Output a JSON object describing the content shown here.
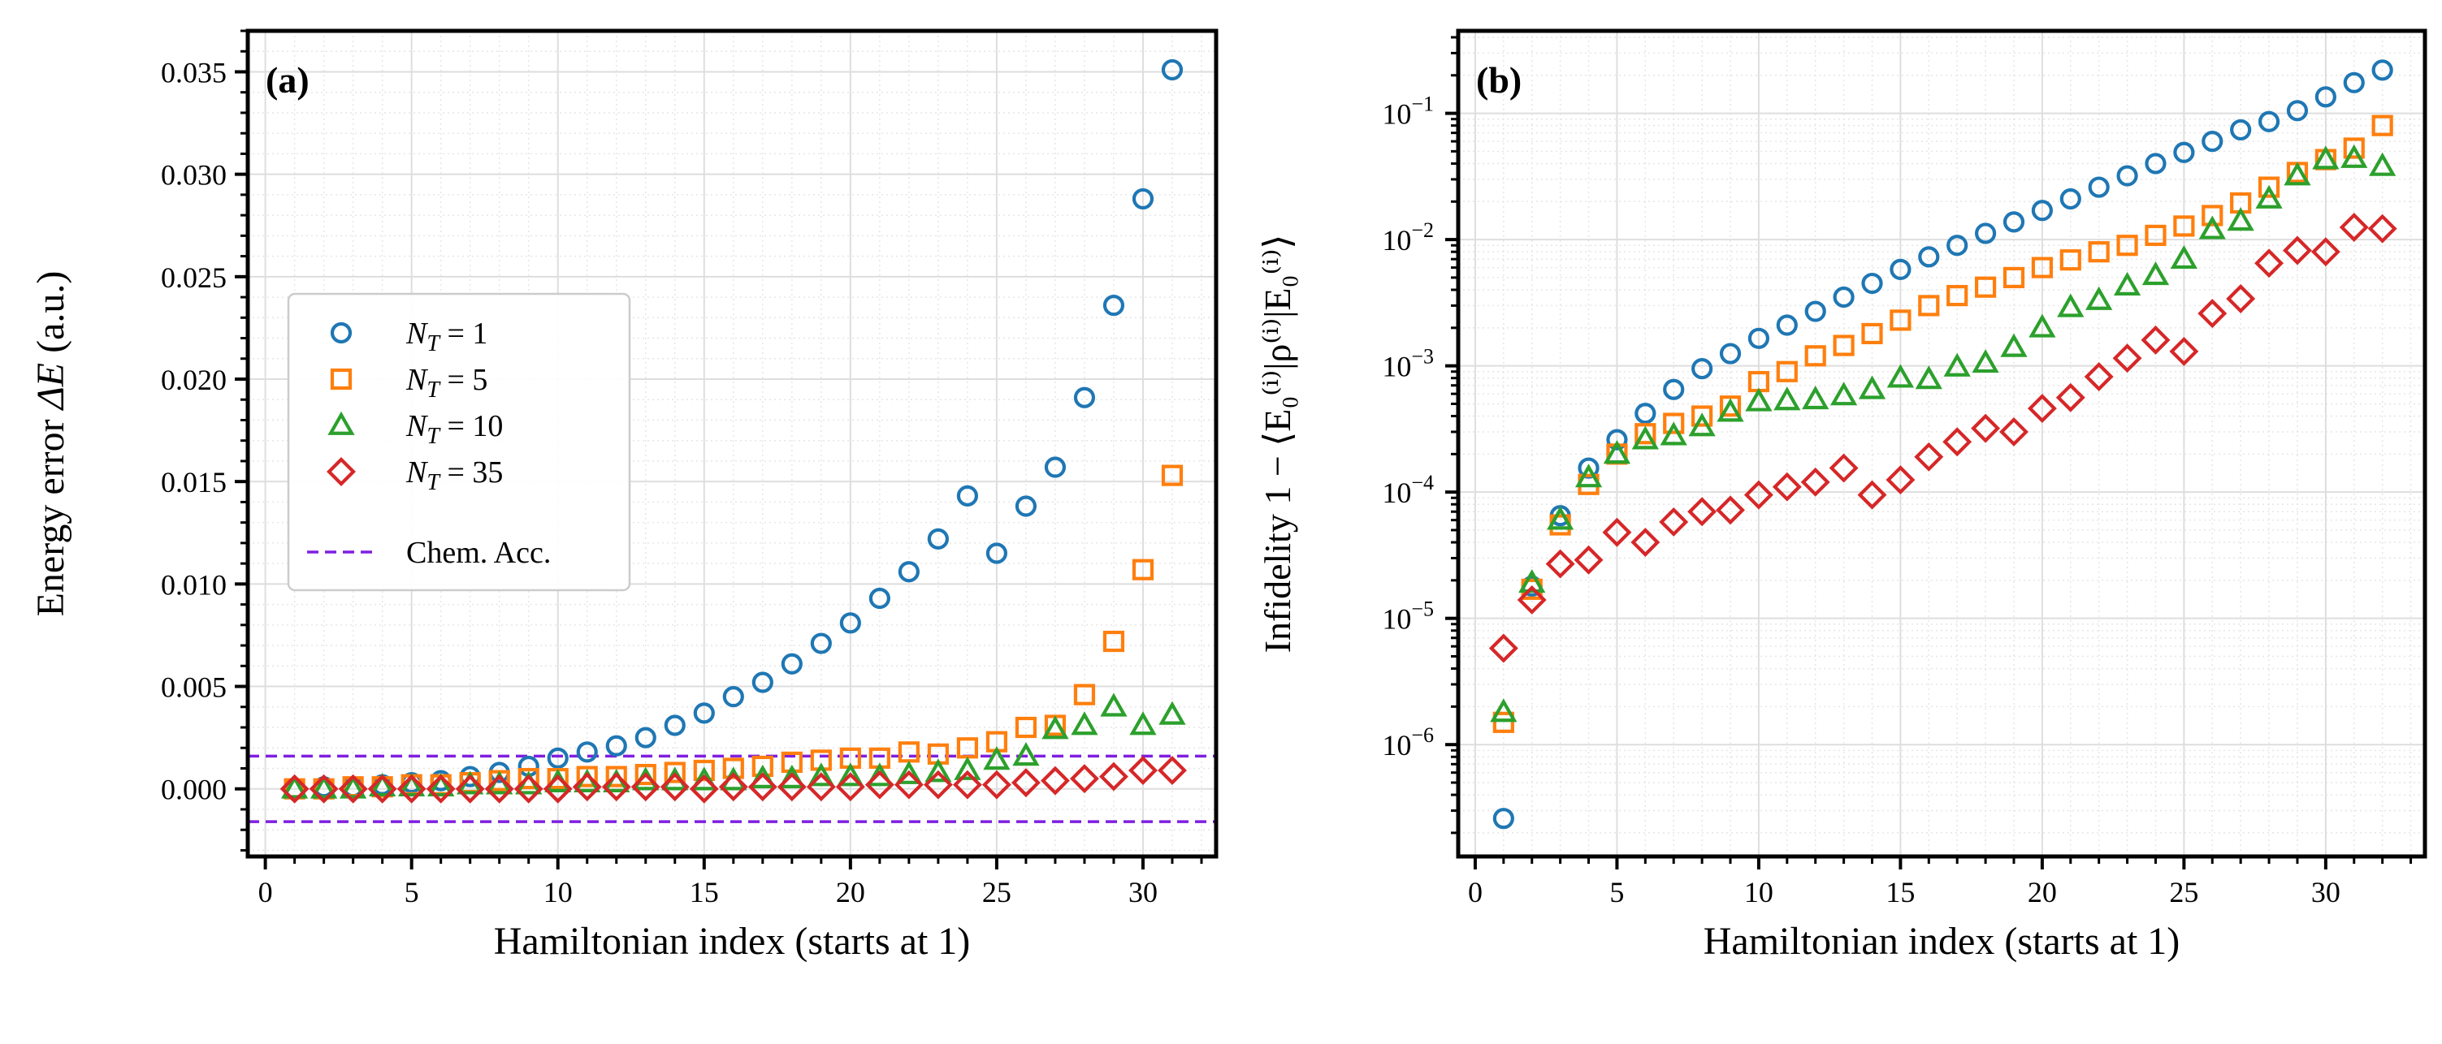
{
  "chart_data": [
    {
      "panel": "a",
      "type": "scatter",
      "panel_label": "(a)",
      "xlabel": "Hamiltonian index (starts at 1)",
      "ylabel_prefix": "Energy error ",
      "ylabel_symbol": "ΔE",
      "ylabel_suffix": " (a.u.)",
      "xscale": "linear",
      "yscale": "linear",
      "xlim": [
        -0.6,
        32.5
      ],
      "ylim": [
        -0.0033,
        0.037
      ],
      "xticks": [
        0,
        5,
        10,
        15,
        20,
        25,
        30
      ],
      "yticks": [
        0.0,
        0.005,
        0.01,
        0.015,
        0.02,
        0.025,
        0.03,
        0.035
      ],
      "ytick_labels": [
        "0.000",
        "0.005",
        "0.010",
        "0.015",
        "0.020",
        "0.025",
        "0.030",
        "0.035"
      ],
      "grid": true,
      "legend_position": "center-left",
      "legend_entries": [
        {
          "sub": "T",
          "value": "1",
          "marker": "circle",
          "color": "#1f77b4"
        },
        {
          "sub": "T",
          "value": "5",
          "marker": "square",
          "color": "#ff7f0e"
        },
        {
          "sub": "T",
          "value": "10",
          "marker": "triangle",
          "color": "#2ca02c"
        },
        {
          "sub": "T",
          "value": "35",
          "marker": "diamond",
          "color": "#d62728"
        }
      ],
      "reference_line": {
        "label": "Chem. Acc.",
        "values": [
          0.0016,
          -0.0016
        ],
        "color": "#7f1fe0"
      },
      "series": [
        {
          "name": "N_T = 1",
          "marker": "circle",
          "color": "#1f77b4",
          "x": [
            1,
            2,
            3,
            4,
            5,
            6,
            7,
            8,
            9,
            10,
            11,
            12,
            13,
            14,
            15,
            16,
            17,
            18,
            19,
            20,
            21,
            22,
            23,
            24,
            25,
            26,
            27,
            28,
            29,
            30,
            31
          ],
          "values": [
            0.0,
            0.0001,
            0.0001,
            0.0002,
            0.0003,
            0.0004,
            0.0006,
            0.0008,
            0.0011,
            0.0015,
            0.0018,
            0.0021,
            0.0025,
            0.0031,
            0.0037,
            0.0045,
            0.0052,
            0.0061,
            0.0071,
            0.0081,
            0.0093,
            0.0106,
            0.0122,
            0.0143,
            0.0115,
            0.0138,
            0.0157,
            0.0191,
            0.0236,
            0.0288,
            0.0351
          ]
        },
        {
          "name": "N_T = 5",
          "marker": "square",
          "color": "#ff7f0e",
          "x": [
            1,
            2,
            3,
            4,
            5,
            6,
            7,
            8,
            9,
            10,
            11,
            12,
            13,
            14,
            15,
            16,
            17,
            18,
            19,
            20,
            21,
            22,
            23,
            24,
            25,
            26,
            27,
            28,
            29,
            30,
            31
          ],
          "values": [
            0.0,
            0.0,
            0.0001,
            0.0001,
            0.0002,
            0.0002,
            0.0003,
            0.0004,
            0.0005,
            0.0005,
            0.0006,
            0.0006,
            0.0007,
            0.0008,
            0.0009,
            0.001,
            0.0011,
            0.0013,
            0.0014,
            0.0015,
            0.0015,
            0.0018,
            0.0017,
            0.002,
            0.0023,
            0.003,
            0.0031,
            0.0046,
            0.0072,
            0.0107,
            0.0153
          ]
        },
        {
          "name": "N_T = 10",
          "marker": "triangle",
          "color": "#2ca02c",
          "x": [
            1,
            2,
            3,
            4,
            5,
            6,
            7,
            8,
            9,
            10,
            11,
            12,
            13,
            14,
            15,
            16,
            17,
            18,
            19,
            20,
            21,
            22,
            23,
            24,
            25,
            26,
            27,
            28,
            29,
            30,
            31
          ],
          "values": [
            0.0,
            0.0,
            0.0,
            0.0001,
            0.0001,
            0.0001,
            0.0002,
            0.0002,
            0.0002,
            0.0003,
            0.0003,
            0.0003,
            0.0004,
            0.0004,
            0.0004,
            0.0004,
            0.0005,
            0.0005,
            0.0006,
            0.0006,
            0.0006,
            0.0007,
            0.0008,
            0.0009,
            0.0014,
            0.0016,
            0.0029,
            0.0031,
            0.004,
            0.0031,
            0.0036
          ]
        },
        {
          "name": "N_T = 35",
          "marker": "diamond",
          "color": "#d62728",
          "x": [
            1,
            2,
            3,
            4,
            5,
            6,
            7,
            8,
            9,
            10,
            11,
            12,
            13,
            14,
            15,
            16,
            17,
            18,
            19,
            20,
            21,
            22,
            23,
            24,
            25,
            26,
            27,
            28,
            29,
            30,
            31
          ],
          "values": [
            0.0,
            0.0,
            0.0,
            0.0,
            0.0,
            0.0,
            0.0,
            0.0,
            0.0,
            0.0,
            0.0001,
            0.0001,
            0.0001,
            0.0001,
            0.0,
            0.0001,
            0.0001,
            0.0001,
            0.0001,
            0.0001,
            0.0002,
            0.0002,
            0.0002,
            0.0002,
            0.0002,
            0.0003,
            0.0004,
            0.0005,
            0.0006,
            0.0009,
            0.0009
          ]
        }
      ]
    },
    {
      "panel": "b",
      "type": "scatter",
      "panel_label": "(b)",
      "xlabel": "Hamiltonian index (starts at 1)",
      "ylabel": "Infidelity 1 − ⟨E₀⁽ⁱ⁾|ρ⁽ⁱ⁾|E₀⁽ⁱ⁾⟩",
      "xscale": "linear",
      "yscale": "log",
      "xlim": [
        -0.6,
        33.5
      ],
      "ylim": [
        1.3e-07,
        0.45
      ],
      "xticks": [
        0,
        5,
        10,
        15,
        20,
        25,
        30
      ],
      "yticks_exp": [
        -6,
        -5,
        -4,
        -3,
        -2,
        -1
      ],
      "grid": true,
      "series": [
        {
          "name": "N_T = 1",
          "marker": "circle",
          "color": "#1f77b4",
          "x": [
            1,
            2,
            3,
            4,
            5,
            6,
            7,
            8,
            9,
            10,
            11,
            12,
            13,
            14,
            15,
            16,
            17,
            18,
            19,
            20,
            21,
            22,
            23,
            24,
            25,
            26,
            27,
            28,
            29,
            30,
            31,
            32
          ],
          "values": [
            2.6e-07,
            1.8e-05,
            6.5e-05,
            0.000155,
            0.00026,
            0.00042,
            0.00065,
            0.00095,
            0.00125,
            0.00165,
            0.0021,
            0.0027,
            0.0035,
            0.0045,
            0.0058,
            0.0073,
            0.009,
            0.0112,
            0.0138,
            0.017,
            0.021,
            0.026,
            0.032,
            0.04,
            0.049,
            0.06,
            0.074,
            0.086,
            0.105,
            0.135,
            0.175,
            0.22
          ]
        },
        {
          "name": "N_T = 5",
          "marker": "square",
          "color": "#ff7f0e",
          "x": [
            1,
            2,
            3,
            4,
            5,
            6,
            7,
            8,
            9,
            10,
            11,
            12,
            13,
            14,
            15,
            16,
            17,
            18,
            19,
            20,
            21,
            22,
            23,
            24,
            25,
            26,
            27,
            28,
            29,
            30,
            31,
            32
          ],
          "values": [
            1.5e-06,
            1.7e-05,
            5.5e-05,
            0.000115,
            0.0002,
            0.00029,
            0.00035,
            0.0004,
            0.00048,
            0.00075,
            0.0009,
            0.0012,
            0.00145,
            0.0018,
            0.0023,
            0.003,
            0.0036,
            0.0042,
            0.005,
            0.006,
            0.0069,
            0.008,
            0.009,
            0.0108,
            0.0128,
            0.0155,
            0.0195,
            0.026,
            0.034,
            0.043,
            0.053,
            0.08
          ]
        },
        {
          "name": "N_T = 10",
          "marker": "triangle",
          "color": "#2ca02c",
          "x": [
            1,
            2,
            3,
            4,
            5,
            6,
            7,
            8,
            9,
            10,
            11,
            12,
            13,
            14,
            15,
            16,
            17,
            18,
            19,
            20,
            21,
            22,
            23,
            24,
            25,
            26,
            27,
            28,
            29,
            30,
            31,
            32
          ],
          "values": [
            1.8e-06,
            1.9e-05,
            6e-05,
            0.00013,
            0.0002,
            0.00026,
            0.00028,
            0.00033,
            0.00043,
            0.00052,
            0.00053,
            0.00054,
            0.00058,
            0.00065,
            0.0008,
            0.00078,
            0.00098,
            0.00105,
            0.0014,
            0.002,
            0.0029,
            0.0033,
            0.0043,
            0.0052,
            0.007,
            0.012,
            0.014,
            0.021,
            0.032,
            0.043,
            0.044,
            0.038
          ]
        },
        {
          "name": "N_T = 35",
          "marker": "diamond",
          "color": "#d62728",
          "x": [
            1,
            2,
            3,
            4,
            5,
            6,
            7,
            8,
            9,
            10,
            11,
            12,
            13,
            14,
            15,
            16,
            17,
            18,
            19,
            20,
            21,
            22,
            23,
            24,
            25,
            26,
            27,
            28,
            29,
            30,
            31,
            32
          ],
          "values": [
            5.8e-06,
            1.4e-05,
            2.7e-05,
            2.9e-05,
            4.8e-05,
            4e-05,
            5.8e-05,
            7e-05,
            7.2e-05,
            9.5e-05,
            0.00011,
            0.00012,
            0.000155,
            9.5e-05,
            0.000125,
            0.00019,
            0.00025,
            0.00032,
            0.0003,
            0.00046,
            0.00056,
            0.00082,
            0.00115,
            0.0016,
            0.0013,
            0.0026,
            0.0034,
            0.0065,
            0.0082,
            0.008,
            0.0125,
            0.0122
          ]
        }
      ]
    }
  ]
}
